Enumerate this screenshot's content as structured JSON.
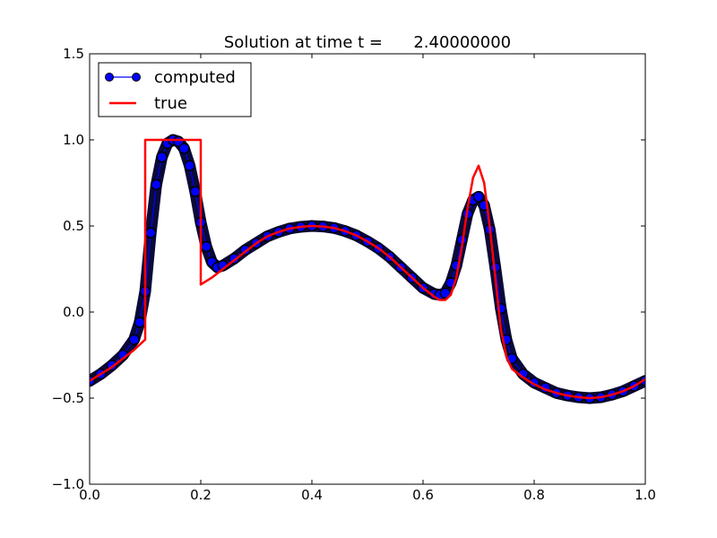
{
  "chart_data": {
    "type": "line",
    "title": "Solution at time t =      2.40000000",
    "xlabel": "",
    "ylabel": "",
    "xlim": [
      0.0,
      1.0
    ],
    "ylim": [
      -1.0,
      1.5
    ],
    "x_ticks": [
      "0.0",
      "0.2",
      "0.4",
      "0.6",
      "0.8",
      "1.0"
    ],
    "y_ticks": [
      "−1.0",
      "−0.5",
      "0.0",
      "0.5",
      "1.0",
      "1.5"
    ],
    "grid": false,
    "legend": {
      "placement": "top-left",
      "entries": [
        "computed",
        "true"
      ]
    },
    "series": [
      {
        "name": "computed",
        "style": "line-with-circle-markers",
        "color": "#0000ff",
        "marker_edge": "#000000",
        "x": [
          0.0,
          0.02,
          0.04,
          0.06,
          0.08,
          0.09,
          0.1,
          0.11,
          0.12,
          0.13,
          0.14,
          0.15,
          0.16,
          0.17,
          0.18,
          0.19,
          0.2,
          0.21,
          0.22,
          0.23,
          0.24,
          0.26,
          0.28,
          0.3,
          0.32,
          0.34,
          0.36,
          0.38,
          0.4,
          0.42,
          0.44,
          0.46,
          0.48,
          0.5,
          0.52,
          0.54,
          0.56,
          0.58,
          0.6,
          0.62,
          0.63,
          0.64,
          0.65,
          0.66,
          0.67,
          0.68,
          0.69,
          0.7,
          0.71,
          0.72,
          0.73,
          0.74,
          0.75,
          0.76,
          0.78,
          0.8,
          0.82,
          0.84,
          0.86,
          0.88,
          0.9,
          0.92,
          0.94,
          0.96,
          0.98,
          1.0
        ],
        "y": [
          -0.4,
          -0.36,
          -0.31,
          -0.25,
          -0.16,
          -0.06,
          0.12,
          0.46,
          0.74,
          0.9,
          0.98,
          1.0,
          0.99,
          0.95,
          0.85,
          0.7,
          0.52,
          0.38,
          0.29,
          0.26,
          0.27,
          0.31,
          0.36,
          0.4,
          0.44,
          0.465,
          0.485,
          0.495,
          0.5,
          0.497,
          0.488,
          0.47,
          0.445,
          0.41,
          0.37,
          0.32,
          0.26,
          0.2,
          0.14,
          0.105,
          0.1,
          0.11,
          0.17,
          0.27,
          0.42,
          0.57,
          0.65,
          0.67,
          0.62,
          0.48,
          0.26,
          0.02,
          -0.16,
          -0.27,
          -0.36,
          -0.41,
          -0.44,
          -0.47,
          -0.485,
          -0.495,
          -0.5,
          -0.495,
          -0.48,
          -0.46,
          -0.43,
          -0.4
        ]
      },
      {
        "name": "true",
        "style": "line",
        "color": "#ff0000",
        "x": [
          0.0,
          0.02,
          0.04,
          0.06,
          0.08,
          0.1,
          0.1,
          0.2,
          0.2,
          0.22,
          0.24,
          0.26,
          0.28,
          0.3,
          0.32,
          0.34,
          0.36,
          0.38,
          0.4,
          0.42,
          0.44,
          0.46,
          0.48,
          0.5,
          0.52,
          0.54,
          0.56,
          0.58,
          0.6,
          0.62,
          0.63,
          0.64,
          0.65,
          0.66,
          0.67,
          0.68,
          0.69,
          0.7,
          0.71,
          0.72,
          0.73,
          0.74,
          0.75,
          0.76,
          0.78,
          0.8,
          0.82,
          0.84,
          0.86,
          0.88,
          0.9,
          0.92,
          0.94,
          0.96,
          0.98,
          1.0
        ],
        "y": [
          -0.4,
          -0.36,
          -0.32,
          -0.27,
          -0.22,
          -0.16,
          1.0,
          1.0,
          0.16,
          0.2,
          0.25,
          0.3,
          0.35,
          0.4,
          0.44,
          0.465,
          0.485,
          0.495,
          0.5,
          0.497,
          0.488,
          0.47,
          0.445,
          0.41,
          0.37,
          0.32,
          0.26,
          0.2,
          0.14,
          0.09,
          0.07,
          0.07,
          0.1,
          0.2,
          0.38,
          0.6,
          0.78,
          0.85,
          0.75,
          0.5,
          0.2,
          -0.1,
          -0.26,
          -0.33,
          -0.38,
          -0.42,
          -0.45,
          -0.47,
          -0.485,
          -0.495,
          -0.5,
          -0.495,
          -0.48,
          -0.46,
          -0.43,
          -0.39
        ]
      }
    ]
  }
}
